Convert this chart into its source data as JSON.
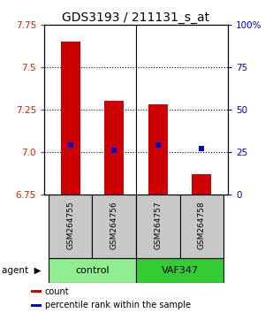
{
  "title": "GDS3193 / 211131_s_at",
  "samples": [
    "GSM264755",
    "GSM264756",
    "GSM264757",
    "GSM264758"
  ],
  "bar_values": [
    7.65,
    7.3,
    7.28,
    6.87
  ],
  "percentile_values": [
    7.04,
    7.01,
    7.04,
    7.02
  ],
  "ylim": [
    6.75,
    7.75
  ],
  "yticks_left": [
    6.75,
    7.0,
    7.25,
    7.5,
    7.75
  ],
  "yticks_right": [
    0,
    25,
    50,
    75,
    100
  ],
  "ytick_labels_right": [
    "0",
    "25",
    "50",
    "75",
    "100%"
  ],
  "dotted_lines": [
    7.5,
    7.25,
    7.0
  ],
  "bar_color": "#cc0000",
  "percentile_color": "#0000cc",
  "bar_width": 0.45,
  "groups": [
    {
      "label": "control",
      "color": "#90EE90"
    },
    {
      "label": "VAF347",
      "color": "#33CC33"
    }
  ],
  "group_label_text": "agent",
  "legend_items": [
    {
      "color": "#cc0000",
      "label": "count"
    },
    {
      "color": "#0000cc",
      "label": "percentile rank within the sample"
    }
  ],
  "ylabel_left_color": "#cc2200",
  "ylabel_right_color": "#0000cc",
  "background_color": "#ffffff",
  "label_box_color": "#c8c8c8",
  "title_fontsize": 10,
  "tick_fontsize": 7.5,
  "sample_fontsize": 6.5,
  "legend_fontsize": 7,
  "group_fontsize": 8
}
